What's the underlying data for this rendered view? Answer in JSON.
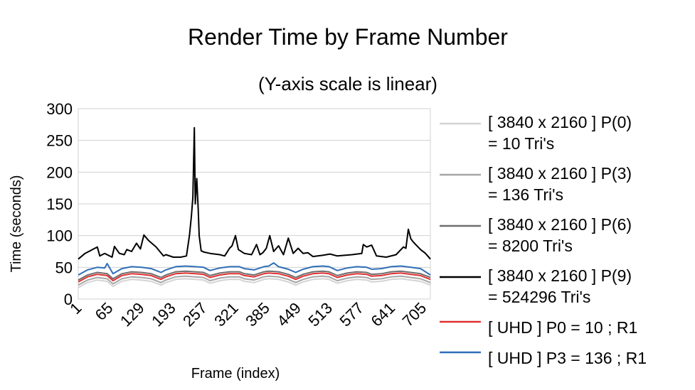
{
  "chart_data": {
    "type": "line",
    "title": "Render Time by Frame Number",
    "subtitle": "(Y-axis scale is linear)",
    "xlabel": "Frame (index)",
    "ylabel": "Time (seconds)",
    "ylim": [
      0,
      300
    ],
    "yticks": [
      0,
      50,
      100,
      150,
      200,
      250,
      300
    ],
    "xlim": [
      1,
      720
    ],
    "xticks": [
      1,
      65,
      129,
      193,
      257,
      321,
      385,
      449,
      513,
      577,
      641,
      705
    ],
    "grid": true,
    "legend_position": "right",
    "series": [
      {
        "name": "[  3840 x  2160 ] P(0) = 10 Tri's",
        "legend_lines": [
          "[  3840 x  2160 ] P(0)",
          "= 10 Tri's"
        ],
        "color": "#d4d4d4",
        "x": [
          1,
          20,
          40,
          60,
          72,
          90,
          110,
          130,
          150,
          170,
          180,
          200,
          220,
          240,
          257,
          270,
          290,
          310,
          330,
          340,
          360,
          380,
          390,
          410,
          430,
          445,
          460,
          480,
          500,
          513,
          530,
          550,
          570,
          590,
          600,
          620,
          640,
          660,
          680,
          700,
          720
        ],
        "values": [
          18,
          26,
          30,
          28,
          20,
          28,
          31,
          30,
          28,
          22,
          26,
          31,
          32,
          31,
          30,
          25,
          29,
          31,
          31,
          28,
          26,
          31,
          32,
          31,
          27,
          22,
          27,
          31,
          32,
          31,
          25,
          29,
          31,
          30,
          27,
          28,
          31,
          32,
          30,
          28,
          22
        ]
      },
      {
        "name": "[  3840 x  2160 ] P(3) = 136 Tri's",
        "legend_lines": [
          "[  3840 x  2160 ] P(3)",
          "= 136 Tri's"
        ],
        "color": "#a6a6a6",
        "x": [
          1,
          20,
          40,
          60,
          72,
          90,
          110,
          130,
          150,
          170,
          180,
          200,
          220,
          240,
          257,
          270,
          290,
          310,
          330,
          340,
          360,
          380,
          390,
          410,
          430,
          445,
          460,
          480,
          500,
          513,
          530,
          550,
          570,
          590,
          600,
          620,
          640,
          660,
          680,
          700,
          720
        ],
        "values": [
          22,
          30,
          34,
          32,
          24,
          32,
          35,
          34,
          32,
          26,
          30,
          35,
          36,
          35,
          34,
          29,
          33,
          35,
          35,
          32,
          30,
          35,
          36,
          35,
          31,
          26,
          31,
          35,
          36,
          35,
          29,
          33,
          35,
          34,
          31,
          32,
          35,
          36,
          34,
          32,
          26
        ]
      },
      {
        "name": "[  3840 x  2160 ] P(6) = 8200 Tri's",
        "legend_lines": [
          "[  3840 x  2160 ] P(6)",
          "= 8200 Tri's"
        ],
        "color": "#6e6e6e",
        "x": [
          1,
          20,
          40,
          60,
          72,
          90,
          110,
          130,
          150,
          170,
          180,
          200,
          220,
          240,
          257,
          270,
          290,
          310,
          330,
          340,
          360,
          380,
          390,
          410,
          430,
          445,
          460,
          480,
          500,
          513,
          530,
          550,
          570,
          590,
          600,
          620,
          640,
          660,
          680,
          700,
          720
        ],
        "values": [
          30,
          38,
          42,
          40,
          32,
          40,
          43,
          42,
          40,
          34,
          38,
          43,
          44,
          43,
          42,
          37,
          41,
          43,
          43,
          40,
          38,
          43,
          44,
          43,
          39,
          34,
          39,
          43,
          44,
          43,
          37,
          41,
          43,
          42,
          39,
          40,
          43,
          44,
          42,
          40,
          34
        ]
      },
      {
        "name": "[  3840 x  2160 ] P(9) = 524296 Tri's",
        "legend_lines": [
          "[  3840 x  2160 ] P(9)",
          "= 524296 Tri's"
        ],
        "color": "#000000",
        "x": [
          1,
          15,
          30,
          40,
          45,
          55,
          60,
          70,
          75,
          85,
          95,
          100,
          110,
          120,
          128,
          135,
          145,
          160,
          175,
          180,
          195,
          210,
          222,
          228,
          232,
          235,
          238,
          240,
          243,
          246,
          248,
          252,
          258,
          270,
          290,
          300,
          310,
          315,
          322,
          328,
          340,
          355,
          365,
          372,
          378,
          385,
          392,
          400,
          410,
          420,
          430,
          440,
          450,
          460,
          470,
          480,
          500,
          515,
          530,
          560,
          580,
          583,
          590,
          600,
          610,
          630,
          650,
          665,
          670,
          675,
          680,
          685,
          690,
          700,
          710,
          720
        ],
        "values": [
          63,
          72,
          78,
          82,
          68,
          72,
          70,
          66,
          83,
          72,
          70,
          78,
          75,
          88,
          79,
          101,
          92,
          82,
          68,
          70,
          66,
          66,
          68,
          100,
          130,
          160,
          270,
          150,
          190,
          140,
          100,
          76,
          74,
          72,
          70,
          68,
          80,
          84,
          100,
          78,
          72,
          70,
          86,
          70,
          73,
          80,
          100,
          75,
          84,
          70,
          96,
          72,
          80,
          72,
          73,
          67,
          69,
          71,
          68,
          70,
          72,
          86,
          82,
          85,
          68,
          66,
          70,
          82,
          80,
          110,
          95,
          90,
          86,
          78,
          72,
          63
        ]
      },
      {
        "name": "[ UHD ] P0 = 10 ; R1",
        "legend_lines": [
          "[ UHD ] P0 = 10 ; R1"
        ],
        "color": "#e03131",
        "x": [
          1,
          20,
          40,
          60,
          72,
          90,
          110,
          130,
          150,
          170,
          180,
          200,
          220,
          240,
          257,
          270,
          290,
          310,
          330,
          340,
          360,
          380,
          390,
          410,
          430,
          445,
          460,
          480,
          500,
          513,
          530,
          550,
          570,
          590,
          600,
          620,
          640,
          660,
          680,
          700,
          720
        ],
        "values": [
          27,
          35,
          39,
          37,
          29,
          37,
          40,
          39,
          37,
          31,
          35,
          40,
          41,
          40,
          39,
          34,
          38,
          40,
          40,
          37,
          35,
          40,
          41,
          40,
          36,
          31,
          36,
          40,
          41,
          40,
          34,
          38,
          40,
          39,
          36,
          37,
          40,
          41,
          39,
          37,
          31
        ]
      },
      {
        "name": "[ UHD ] P3 = 136 ; R1",
        "legend_lines": [
          "[ UHD ] P3 = 136 ; R1"
        ],
        "color": "#2f6fb8",
        "x": [
          1,
          20,
          40,
          55,
          60,
          72,
          90,
          110,
          130,
          150,
          170,
          180,
          200,
          220,
          240,
          257,
          270,
          290,
          310,
          330,
          340,
          360,
          380,
          390,
          400,
          410,
          430,
          445,
          460,
          480,
          500,
          513,
          530,
          550,
          570,
          590,
          600,
          620,
          640,
          660,
          680,
          700,
          720
        ],
        "values": [
          38,
          46,
          50,
          49,
          56,
          40,
          48,
          51,
          50,
          48,
          42,
          46,
          51,
          52,
          51,
          50,
          45,
          49,
          51,
          51,
          48,
          46,
          51,
          52,
          57,
          51,
          47,
          42,
          47,
          51,
          52,
          51,
          45,
          49,
          51,
          50,
          47,
          48,
          51,
          52,
          50,
          48,
          38
        ]
      }
    ]
  }
}
